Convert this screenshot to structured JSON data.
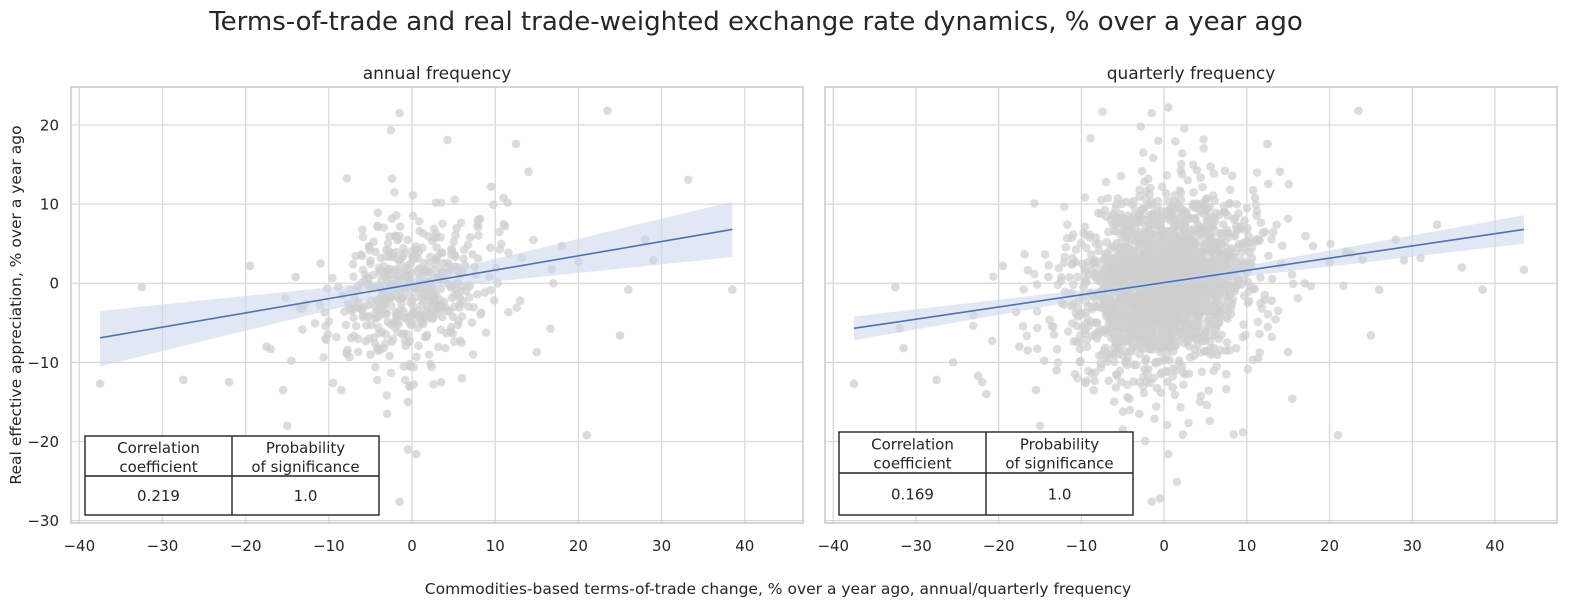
{
  "figure": {
    "suptitle": "Terms-of-trade and real trade-weighted exchange rate dynamics, % over a year ago",
    "xlabel": "Commodities-based terms-of-trade change, % over a year ago, annual/quarterly frequency",
    "ylabel": "Real effective appreciation, % over a year ago"
  },
  "colors": {
    "scatter": "#cfcfcf",
    "regression_line": "#4c72b0",
    "confidence_band": "#c8d5ea",
    "grid": "#d9d9d9",
    "axes_edge": "#cccccc",
    "text": "#262626"
  },
  "chart_data": [
    {
      "type": "scatter",
      "title": "annual frequency",
      "xlim": [
        -41,
        47
      ],
      "ylim": [
        -30.3,
        24.8
      ],
      "xticks": [
        -40,
        -30,
        -20,
        -10,
        0,
        10,
        20,
        30,
        40
      ],
      "yticks": [
        -30,
        -20,
        -10,
        0,
        10,
        20
      ],
      "tick_labels_x": [
        "−40",
        "−30",
        "−20",
        "−10",
        "0",
        "10",
        "20",
        "30",
        "40"
      ],
      "tick_labels_y": [
        "−30",
        "−20",
        "−10",
        "0",
        "10",
        "20"
      ],
      "grid": true,
      "regression": {
        "x": [
          -37.5,
          38.5
        ],
        "y": [
          -6.9,
          6.8
        ],
        "slope": 0.18,
        "intercept": -0.15,
        "ci_low_ends": [
          -10.5,
          3.3
        ],
        "ci_high_ends": [
          -3.5,
          10.3
        ],
        "ci_center_halfwidth": 0.7
      },
      "cloud": {
        "n": 480,
        "x_sd": 4.5,
        "y_sd": 4.5,
        "seed": 11
      },
      "points": [
        [
          -37.5,
          -12.7
        ],
        [
          -32.5,
          -0.5
        ],
        [
          -27.5,
          -12.2
        ],
        [
          -22,
          -12.5
        ],
        [
          -19.5,
          2.2
        ],
        [
          -17.5,
          -8
        ],
        [
          -17,
          -8.3
        ],
        [
          -15.5,
          -13.5
        ],
        [
          -15,
          -18
        ],
        [
          -14.5,
          -9.8
        ],
        [
          -14,
          0.8
        ],
        [
          -11,
          2.5
        ],
        [
          -9.5,
          -12.6
        ],
        [
          -8.5,
          -13.5
        ],
        [
          -3,
          -16.5
        ],
        [
          -1.5,
          21.5
        ],
        [
          -1.5,
          -27.6
        ],
        [
          -0.5,
          -21
        ],
        [
          -0.3,
          -13
        ],
        [
          0.5,
          -21.6
        ],
        [
          -0.5,
          -15
        ],
        [
          -1,
          -10.5
        ],
        [
          -5,
          -9
        ],
        [
          -6.5,
          -7
        ],
        [
          15,
          -8.7
        ],
        [
          21,
          -19.2
        ],
        [
          23.5,
          21.8
        ],
        [
          25,
          -6.6
        ],
        [
          26,
          -0.8
        ],
        [
          28,
          5.5
        ],
        [
          29,
          2.9
        ],
        [
          38.5,
          -0.8
        ],
        [
          12.5,
          17.6
        ],
        [
          14,
          14.1
        ],
        [
          18,
          4.7
        ],
        [
          20,
          2.7
        ],
        [
          17,
          0.0
        ],
        [
          13,
          -2.2
        ],
        [
          11,
          10.8
        ],
        [
          9.5,
          12.2
        ],
        [
          10.5,
          6.5
        ],
        [
          7,
          5.8
        ],
        [
          6,
          -12
        ],
        [
          3.5,
          -12.5
        ]
      ],
      "table": {
        "col1_header": "Correlation\ncoefficient",
        "col2_header": "Probability\nof significance",
        "correlation": "0.219",
        "probability": "1.0"
      }
    },
    {
      "type": "scatter",
      "title": "quarterly frequency",
      "xlim": [
        -41,
        47.5
      ],
      "ylim": [
        -30.3,
        24.8
      ],
      "xticks": [
        -40,
        -30,
        -20,
        -10,
        0,
        10,
        20,
        30,
        40
      ],
      "yticks": [
        -30,
        -20,
        -10,
        0,
        10,
        20
      ],
      "tick_labels_x": [
        "−40",
        "−30",
        "−20",
        "−10",
        "0",
        "10",
        "20",
        "30",
        "40"
      ],
      "tick_labels_y": [],
      "grid": true,
      "regression": {
        "x": [
          -37.5,
          43.5
        ],
        "y": [
          -5.7,
          6.8
        ],
        "slope": 0.154,
        "intercept": 0.0,
        "ci_low_ends": [
          -7.2,
          5.0
        ],
        "ci_high_ends": [
          -4.2,
          8.6
        ],
        "ci_center_halfwidth": 0.35
      },
      "cloud": {
        "n": 2200,
        "x_sd": 4.8,
        "y_sd": 4.9,
        "seed": 29
      },
      "points": [
        [
          -37.5,
          -12.7
        ],
        [
          -32.5,
          -0.5
        ],
        [
          -32,
          -5.7
        ],
        [
          -31.5,
          -8.2
        ],
        [
          -27.5,
          -12.2
        ],
        [
          -25.5,
          -10
        ],
        [
          -22.5,
          -11.7
        ],
        [
          -22,
          -12.5
        ],
        [
          -21.5,
          -14
        ],
        [
          -19.5,
          2.2
        ],
        [
          -17.5,
          -8
        ],
        [
          -16.5,
          -8.5
        ],
        [
          -15.5,
          -13.5
        ],
        [
          -15,
          -18
        ],
        [
          -14.5,
          -9.8
        ],
        [
          -14,
          0.8
        ],
        [
          -13,
          -11
        ],
        [
          -11,
          2.5
        ],
        [
          -9.5,
          -12.6
        ],
        [
          -8.5,
          -13.5
        ],
        [
          -5,
          -18.5
        ],
        [
          -3,
          -16.5
        ],
        [
          -1.5,
          21.5
        ],
        [
          -1.5,
          -27.6
        ],
        [
          -0.5,
          -27.2
        ],
        [
          0.5,
          -21.6
        ],
        [
          0.5,
          22.2
        ],
        [
          15,
          -8.7
        ],
        [
          15.5,
          -14.6
        ],
        [
          21,
          -19.2
        ],
        [
          23.5,
          21.8
        ],
        [
          25,
          -6.6
        ],
        [
          26,
          -0.8
        ],
        [
          28,
          5.5
        ],
        [
          29,
          2.9
        ],
        [
          31,
          3.2
        ],
        [
          33,
          7.4
        ],
        [
          36,
          2.0
        ],
        [
          38.5,
          -0.8
        ],
        [
          43.5,
          1.7
        ],
        [
          12.5,
          17.6
        ],
        [
          14,
          14.1
        ],
        [
          18,
          4.7
        ],
        [
          20,
          2.7
        ],
        [
          17,
          0.0
        ],
        [
          13,
          -2.2
        ],
        [
          11,
          10.8
        ],
        [
          22,
          4.0
        ],
        [
          24,
          3.0
        ]
      ],
      "table": {
        "col1_header": "Correlation\ncoefficient",
        "col2_header": "Probability\nof significance",
        "correlation": "0.169",
        "probability": "1.0"
      }
    }
  ]
}
